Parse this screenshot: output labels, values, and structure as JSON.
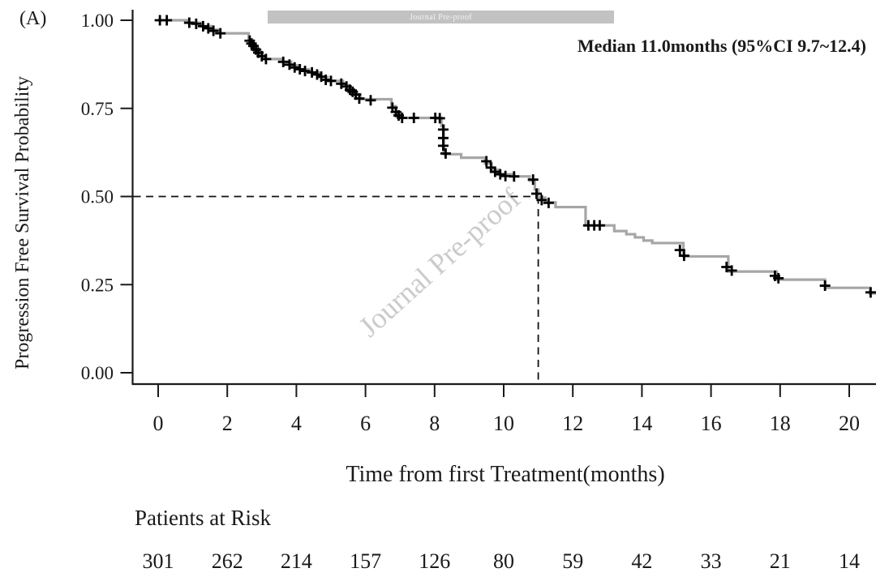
{
  "figure": {
    "panel_label": "(A)",
    "banner_text": "Journal Pre-proof",
    "watermark_text": "Journal Pre-proof",
    "annotation": "Median 11.0months (95%CI 9.7~12.4)"
  },
  "chart_data": {
    "type": "line",
    "subtype": "kaplan-meier-step-curve",
    "title": "",
    "xlabel": "Time from first Treatment(months)",
    "ylabel": "Progression Free Survival Probability",
    "xlim": [
      0,
      21
    ],
    "ylim": [
      0,
      1
    ],
    "grid": false,
    "legend": "none",
    "xticks": [
      0,
      2,
      4,
      6,
      8,
      10,
      12,
      14,
      16,
      18,
      20
    ],
    "ytick_labels": [
      "1.00",
      "0.75",
      "0.50",
      "0.25",
      "0.00"
    ],
    "ytick_values": [
      1.0,
      0.75,
      0.5,
      0.25,
      0.0
    ],
    "curve_color": "#a6a6a6",
    "censor_color": "#000000",
    "axis_color": "#1a1a1a",
    "median_line": {
      "time": 11.0,
      "probability": 0.5,
      "style": "dashed"
    },
    "series": [
      {
        "name": "Progression Free Survival",
        "steps": [
          [
            0,
            1.0
          ],
          [
            0.85,
            0.993
          ],
          [
            1.25,
            0.983
          ],
          [
            1.55,
            0.973
          ],
          [
            1.8,
            0.963
          ],
          [
            2.62,
            0.945
          ],
          [
            2.72,
            0.93
          ],
          [
            2.82,
            0.915
          ],
          [
            2.95,
            0.9
          ],
          [
            3.1,
            0.89
          ],
          [
            3.6,
            0.882
          ],
          [
            3.85,
            0.872
          ],
          [
            4.1,
            0.861
          ],
          [
            4.35,
            0.852
          ],
          [
            4.65,
            0.839
          ],
          [
            4.9,
            0.828
          ],
          [
            5.35,
            0.816
          ],
          [
            5.5,
            0.803
          ],
          [
            5.65,
            0.79
          ],
          [
            5.85,
            0.776
          ],
          [
            6.75,
            0.756
          ],
          [
            6.88,
            0.738
          ],
          [
            7.02,
            0.723
          ],
          [
            8.2,
            0.7
          ],
          [
            8.27,
            0.62
          ],
          [
            8.77,
            0.61
          ],
          [
            9.46,
            0.594
          ],
          [
            9.65,
            0.576
          ],
          [
            9.85,
            0.563
          ],
          [
            10.3,
            0.557
          ],
          [
            10.75,
            0.545
          ],
          [
            10.9,
            0.52
          ],
          [
            11.0,
            0.497
          ],
          [
            11.2,
            0.483
          ],
          [
            11.5,
            0.47
          ],
          [
            12.37,
            0.418
          ],
          [
            13.2,
            0.402
          ],
          [
            13.55,
            0.393
          ],
          [
            13.8,
            0.384
          ],
          [
            14.05,
            0.375
          ],
          [
            14.3,
            0.368
          ],
          [
            15.2,
            0.33
          ],
          [
            16.5,
            0.287
          ],
          [
            17.9,
            0.264
          ],
          [
            19.3,
            0.241
          ],
          [
            20.6,
            0.225
          ],
          [
            20.82,
            0.218
          ]
        ]
      }
    ],
    "censor_marks": [
      [
        0.05,
        1.0
      ],
      [
        0.25,
        1.0
      ],
      [
        0.9,
        0.993
      ],
      [
        1.1,
        0.99
      ],
      [
        1.3,
        0.983
      ],
      [
        1.45,
        0.977
      ],
      [
        1.6,
        0.97
      ],
      [
        1.8,
        0.963
      ],
      [
        2.65,
        0.942
      ],
      [
        2.7,
        0.934
      ],
      [
        2.76,
        0.927
      ],
      [
        2.83,
        0.917
      ],
      [
        2.9,
        0.908
      ],
      [
        3.0,
        0.898
      ],
      [
        3.12,
        0.89
      ],
      [
        3.62,
        0.882
      ],
      [
        3.8,
        0.874
      ],
      [
        3.95,
        0.866
      ],
      [
        4.1,
        0.861
      ],
      [
        4.25,
        0.856
      ],
      [
        4.45,
        0.852
      ],
      [
        4.6,
        0.846
      ],
      [
        4.72,
        0.84
      ],
      [
        4.85,
        0.831
      ],
      [
        5.0,
        0.828
      ],
      [
        5.3,
        0.82
      ],
      [
        5.45,
        0.812
      ],
      [
        5.55,
        0.803
      ],
      [
        5.63,
        0.797
      ],
      [
        5.72,
        0.789
      ],
      [
        5.82,
        0.778
      ],
      [
        6.15,
        0.773
      ],
      [
        6.78,
        0.752
      ],
      [
        6.88,
        0.74
      ],
      [
        6.96,
        0.73
      ],
      [
        7.06,
        0.723
      ],
      [
        7.4,
        0.723
      ],
      [
        8.02,
        0.723
      ],
      [
        8.15,
        0.722
      ],
      [
        8.25,
        0.69
      ],
      [
        8.25,
        0.666
      ],
      [
        8.25,
        0.644
      ],
      [
        8.32,
        0.622
      ],
      [
        9.5,
        0.6
      ],
      [
        9.63,
        0.582
      ],
      [
        9.75,
        0.57
      ],
      [
        9.9,
        0.563
      ],
      [
        10.05,
        0.558
      ],
      [
        10.3,
        0.557
      ],
      [
        10.85,
        0.548
      ],
      [
        10.95,
        0.508
      ],
      [
        11.1,
        0.49
      ],
      [
        11.3,
        0.482
      ],
      [
        12.45,
        0.418
      ],
      [
        12.62,
        0.418
      ],
      [
        12.78,
        0.418
      ],
      [
        15.1,
        0.348
      ],
      [
        15.22,
        0.332
      ],
      [
        16.45,
        0.3
      ],
      [
        16.6,
        0.29
      ],
      [
        17.85,
        0.275
      ],
      [
        17.95,
        0.268
      ],
      [
        19.3,
        0.247
      ],
      [
        20.62,
        0.228
      ]
    ],
    "risk_table": {
      "label": "Patients at Risk",
      "times": [
        0,
        2,
        4,
        6,
        8,
        10,
        12,
        14,
        16,
        18,
        20
      ],
      "counts": [
        301,
        262,
        214,
        157,
        126,
        80,
        59,
        42,
        33,
        21,
        14
      ]
    }
  }
}
